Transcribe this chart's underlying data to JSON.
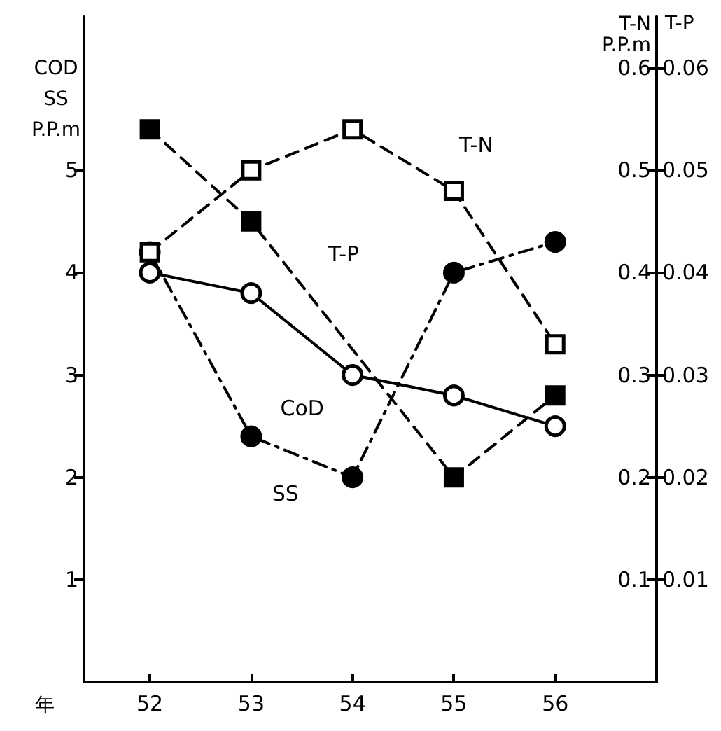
{
  "chart_data": {
    "type": "line",
    "xlabel": "年",
    "ylabel": "COD\nSS\nP.P.m",
    "y2label": "T-N\nP.P.m",
    "y3label": "T-P",
    "x": [
      52,
      53,
      54,
      55,
      56
    ],
    "xlim": [
      51.35,
      57
    ],
    "xticks": [
      52,
      53,
      54,
      55,
      56
    ],
    "ylim": [
      0,
      6.5
    ],
    "yticks": [
      1,
      2,
      3,
      4,
      5
    ],
    "y2lim": [
      0,
      0.65
    ],
    "y2ticks": [
      0.1,
      0.2,
      0.3,
      0.4,
      0.5,
      0.6
    ],
    "y3lim": [
      0,
      0.065
    ],
    "y3ticks": [
      0.01,
      0.02,
      0.03,
      0.04,
      0.05,
      0.06
    ],
    "grid": false,
    "legend": false,
    "series": [
      {
        "name": "T-N",
        "color": "#000000",
        "marker": "square",
        "line_style": "dashed",
        "axis": "y2",
        "values": [
          0.42,
          0.5,
          0.54,
          0.48,
          0.33
        ]
      },
      {
        "name": "T-P",
        "color": "#000000",
        "marker": "square",
        "line_style": "dashed",
        "axis": "y3",
        "values": [
          0.054,
          0.045,
          null,
          0.02,
          0.028
        ]
      },
      {
        "name": "CoD",
        "color": "#000000",
        "marker": "circle",
        "line_style": "solid",
        "values": [
          4.0,
          3.8,
          3.0,
          2.8,
          2.5
        ]
      },
      {
        "name": "SS",
        "color": "#000000",
        "marker": "circle",
        "line_style": "dashdot",
        "values": [
          4.2,
          2.4,
          2.0,
          4.0,
          4.3
        ]
      }
    ]
  }
}
